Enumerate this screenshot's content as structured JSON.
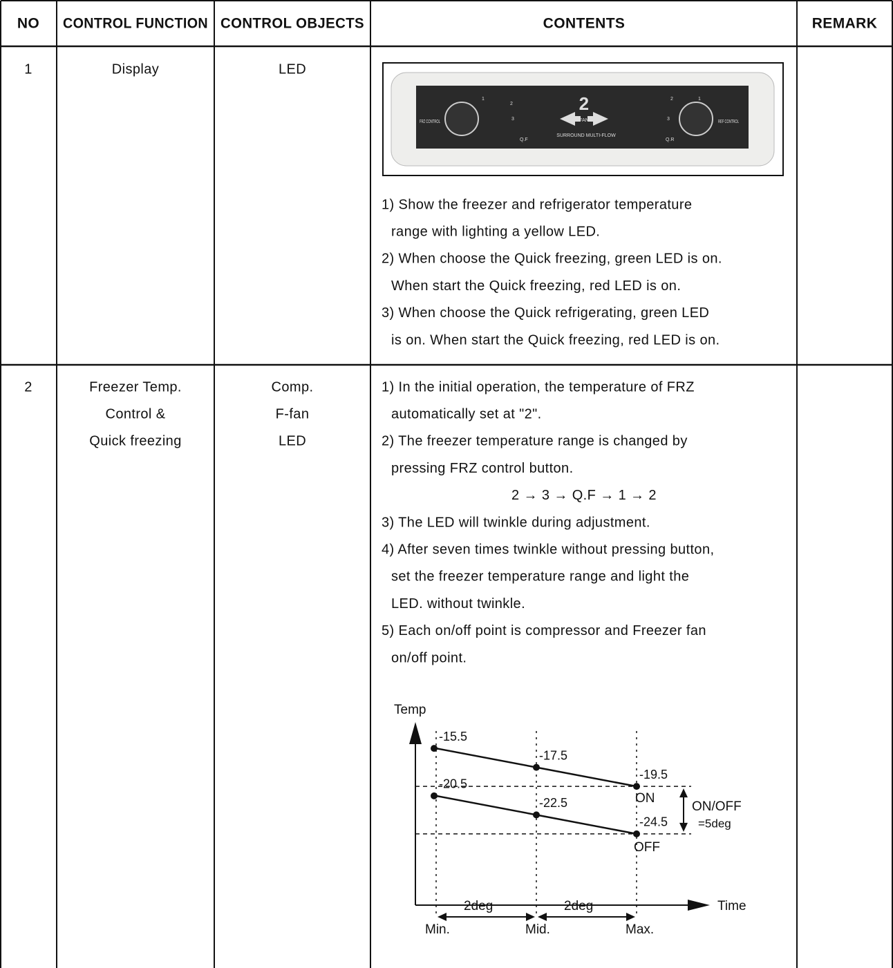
{
  "header": [
    "NO",
    "CONTROL FUNCTION",
    "CONTROL OBJECTS",
    "CONTENTS",
    "REMARK"
  ],
  "rows": [
    {
      "no": "1",
      "function": [
        "Display"
      ],
      "objects": [
        "LED"
      ],
      "panel": {
        "left_knob": "FRZ CONTROL",
        "right_knob": "REF CONTROL",
        "center_number": "2",
        "center_word": "FAN",
        "center_caption": "SURROUND MULTI-FLOW",
        "left_marks": [
          "1",
          "2",
          "3",
          "Q.F"
        ],
        "right_marks": [
          "2",
          "1",
          "3",
          "Q.R"
        ]
      },
      "contents": [
        "1) Show the freezer and refrigerator temperature",
        "range with lighting a yellow LED.",
        "2) When choose the Quick freezing, green LED is on.",
        "When start the Quick freezing, red LED is on.",
        "3) When choose the Quick refrigerating, green LED",
        "is on. When start the Quick freezing, red LED is on."
      ]
    },
    {
      "no": "2",
      "function": [
        "Freezer Temp.",
        "Control &",
        "Quick freezing"
      ],
      "objects": [
        "Comp.",
        "F-fan",
        "LED"
      ],
      "contents": [
        "1) In the initial operation, the temperature of FRZ",
        "automatically set at \"2\".",
        "2) The freezer temperature range is changed by",
        "pressing FRZ control button.",
        "2 → 3 → Q.F → 1 → 2",
        "3) The LED will twinkle during adjustment.",
        "4) After seven times twinkle without pressing button,",
        "set the freezer temperature range and light the",
        "LED. without twinkle.",
        "5) Each on/off point is compressor and Freezer fan",
        "on/off point."
      ],
      "diagram": {
        "axis_y": "Temp",
        "axis_x": "Time",
        "positions": [
          "Min.",
          "Mid.",
          "Max."
        ],
        "on_line": [
          -15.5,
          -17.5,
          -19.5
        ],
        "off_line": [
          -20.5,
          -22.5,
          -24.5
        ],
        "on_label": "ON",
        "off_label": "OFF",
        "band_label": "ON/OFF",
        "band_value": "=5deg",
        "step_labels": [
          "2deg",
          "2deg"
        ]
      }
    }
  ]
}
